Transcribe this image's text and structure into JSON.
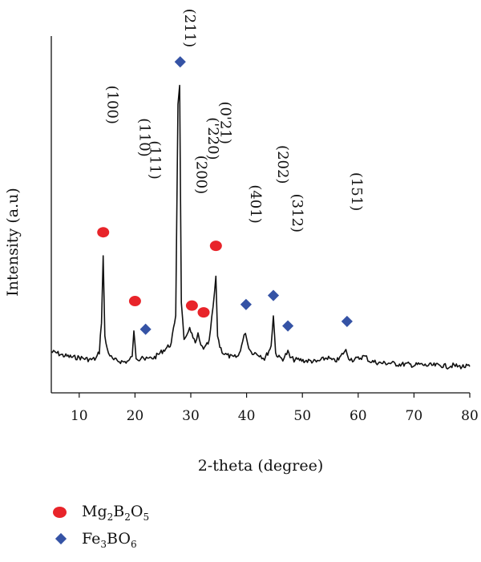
{
  "chart_data": {
    "type": "line",
    "title": "",
    "xlabel": "2-theta (degree)",
    "ylabel": "Intensity (a.u)",
    "xlim": [
      5,
      80
    ],
    "xticks": [
      10,
      20,
      30,
      40,
      50,
      60,
      70,
      80
    ],
    "x": [
      5,
      6,
      7,
      8,
      9,
      10,
      11,
      12,
      13,
      13.6,
      14.0,
      14.3,
      14.6,
      15.0,
      15.5,
      16,
      17,
      18,
      19,
      19.5,
      19.8,
      20.2,
      20.8,
      21.3,
      21.8,
      22.5,
      23.5,
      24.5,
      25.5,
      26.5,
      27.3,
      27.7,
      28.0,
      28.3,
      28.8,
      29.3,
      29.8,
      30.2,
      30.8,
      31.3,
      31.8,
      32.5,
      33.3,
      34.0,
      34.5,
      34.8,
      35.2,
      35.8,
      36.5,
      37.5,
      38.5,
      39.3,
      39.8,
      40.2,
      40.8,
      41.5,
      42.5,
      43.2,
      43.8,
      44.4,
      44.8,
      45.2,
      45.8,
      46.5,
      47.0,
      47.4,
      47.8,
      48.5,
      49.5,
      50.5,
      51.5,
      52.5,
      53.5,
      54.5,
      55.5,
      56.5,
      57.3,
      57.8,
      58.3,
      59,
      60,
      61,
      61.5,
      62,
      63,
      64,
      65,
      66,
      67,
      68,
      69,
      70,
      71,
      72,
      73,
      74,
      75,
      76,
      77,
      78,
      79,
      80
    ],
    "y": [
      15,
      14,
      12,
      11,
      10,
      10,
      9,
      8,
      9,
      15,
      42,
      100,
      28,
      18,
      12,
      8,
      7,
      6,
      7,
      12,
      32,
      10,
      9,
      12,
      8,
      9,
      10,
      14,
      18,
      22,
      48,
      236,
      250,
      60,
      24,
      28,
      38,
      30,
      22,
      30,
      20,
      18,
      24,
      55,
      80,
      30,
      20,
      14,
      12,
      10,
      11,
      24,
      33,
      22,
      15,
      14,
      12,
      9,
      14,
      20,
      48,
      14,
      10,
      9,
      12,
      15,
      10,
      8,
      8,
      7,
      7,
      6,
      8,
      10,
      7,
      8,
      14,
      16,
      10,
      8,
      9,
      11,
      10,
      7,
      6,
      5,
      5,
      5,
      4,
      4,
      4,
      3,
      4,
      3,
      3,
      3,
      3,
      2,
      3,
      2,
      2,
      2
    ],
    "grid": false,
    "legend": [
      {
        "name": "Mg2B2O5",
        "marker": "circle",
        "color": "#e8242a"
      },
      {
        "name": "Fe3BO6",
        "marker": "diamond",
        "color": "#3553a5"
      }
    ],
    "annotations": [
      {
        "label": "(100)",
        "x": 14.3,
        "marker": "circle",
        "label_y": 234,
        "marker_y": 121
      },
      {
        "label": "(110)",
        "x": 20.0,
        "marker": "circle",
        "label_y": 205,
        "marker_y": 60
      },
      {
        "label": "(111)",
        "x": 21.9,
        "marker": "diamond",
        "label_y": 185,
        "marker_y": 35
      },
      {
        "label": "(211)",
        "x": 28.1,
        "marker": "diamond",
        "label_y": 302,
        "marker_y": 272
      },
      {
        "label": "(200)",
        "x": 30.2,
        "marker": "circle",
        "label_y": 172,
        "marker_y": 56
      },
      {
        "label": "('220)",
        "x": 32.3,
        "marker": "circle",
        "label_y": 204,
        "marker_y": 50
      },
      {
        "label": "(0'21)",
        "x": 34.5,
        "marker": "circle",
        "label_y": 218,
        "marker_y": 109
      },
      {
        "label": "(401)",
        "x": 39.9,
        "marker": "diamond",
        "label_y": 146,
        "marker_y": 57
      },
      {
        "label": "(202)",
        "x": 44.8,
        "marker": "diamond",
        "label_y": 181,
        "marker_y": 65
      },
      {
        "label": "(312)",
        "x": 47.4,
        "marker": "diamond",
        "label_y": 138,
        "marker_y": 38
      },
      {
        "label": "(151)",
        "x": 58.0,
        "marker": "diamond",
        "label_y": 157,
        "marker_y": 42
      }
    ]
  },
  "legend_items": [
    {
      "formula": "Mg",
      "s1": "2",
      "f2": "B",
      "s2": "2",
      "f3": "O",
      "s3": "5"
    },
    {
      "formula": "Fe",
      "s1": "3",
      "f2": "BO",
      "s2": "6",
      "f3": "",
      "s3": ""
    }
  ]
}
